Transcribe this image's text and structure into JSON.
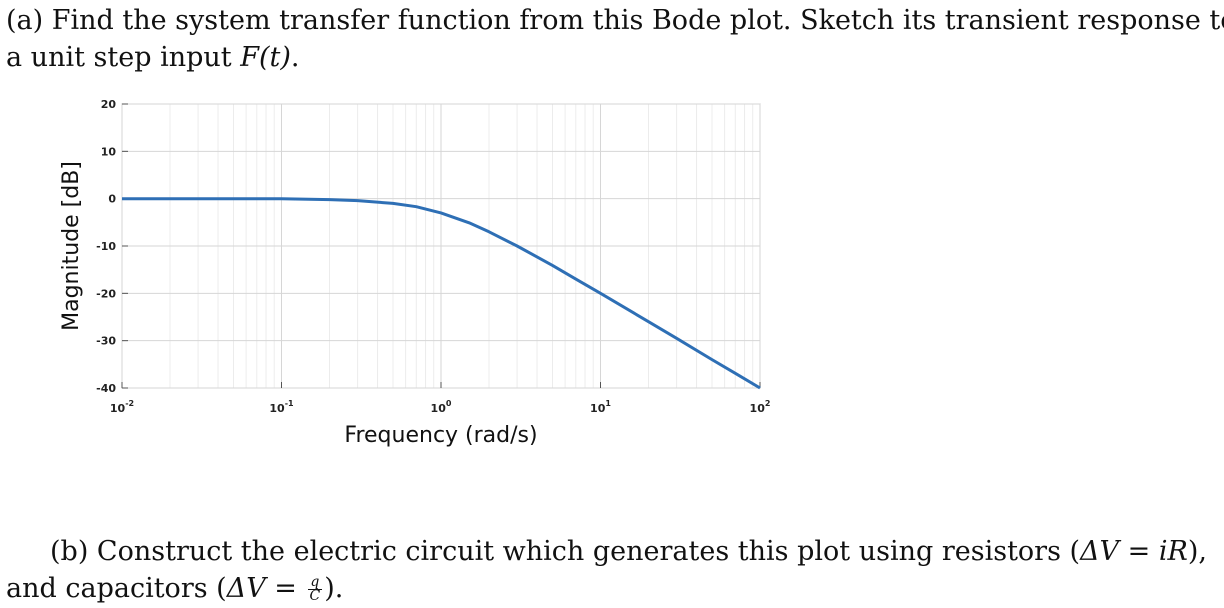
{
  "question_a": {
    "line1": "(a) Find the system transfer function from this Bode plot. Sketch its transient response to",
    "line2_prefix": "a unit step input ",
    "line2_math": "F(t)",
    "line2_suffix": "."
  },
  "question_b": {
    "line1_prefix": "(b) Construct the electric circuit which generates this plot using resistors (",
    "line1_math": "ΔV = iR",
    "line1_suffix": "),",
    "line2_prefix": "and capacitors (",
    "line2_math": "ΔV = ",
    "frac_num": "q",
    "frac_den": "C",
    "line2_suffix": ")."
  },
  "chart_data": {
    "type": "line",
    "xlabel": "Frequency (rad/s)",
    "ylabel": "Magnitude [dB]",
    "x_scale": "log",
    "xlim": [
      0.01,
      100
    ],
    "ylim": [
      -40,
      20
    ],
    "x_ticks": [
      {
        "value": 0.01,
        "base": "10",
        "exp": "-2"
      },
      {
        "value": 0.1,
        "base": "10",
        "exp": "-1"
      },
      {
        "value": 1,
        "base": "10",
        "exp": "0"
      },
      {
        "value": 10,
        "base": "10",
        "exp": "1"
      },
      {
        "value": 100,
        "base": "10",
        "exp": "2"
      }
    ],
    "y_ticks": [
      20,
      10,
      0,
      -10,
      -20,
      -30,
      -40
    ],
    "grid": true,
    "line_color": "#2e6fb5",
    "series": [
      {
        "x": [
          0.01,
          0.02,
          0.05,
          0.1,
          0.2,
          0.3,
          0.5,
          0.7,
          1,
          1.5,
          2,
          3,
          5,
          7,
          10,
          20,
          30,
          50,
          70,
          100
        ],
        "y": [
          0,
          0,
          0,
          0,
          -0.2,
          -0.4,
          -1,
          -1.7,
          -3,
          -5.1,
          -7,
          -10,
          -14.1,
          -17,
          -20,
          -26,
          -29.5,
          -34,
          -36.9,
          -40
        ]
      }
    ]
  }
}
